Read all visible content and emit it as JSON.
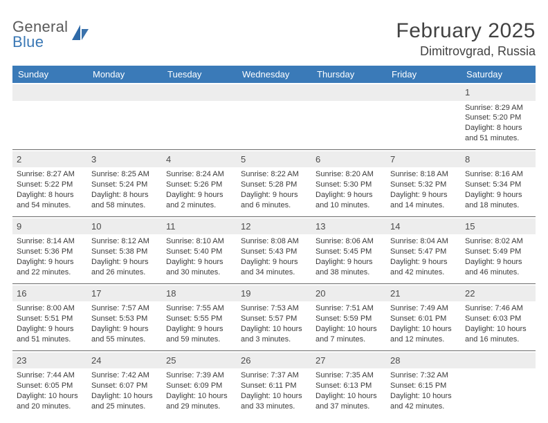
{
  "brand": {
    "line1": "General",
    "line2": "Blue"
  },
  "title": "February 2025",
  "location": "Dimitrovgrad, Russia",
  "weekdays": [
    "Sunday",
    "Monday",
    "Tuesday",
    "Wednesday",
    "Thursday",
    "Friday",
    "Saturday"
  ],
  "colors": {
    "header_bg": "#3a7ab8",
    "header_text": "#ffffff",
    "daynum_bg": "#ededed",
    "border": "#6a6a6a",
    "text": "#3a3a3a",
    "brand_blue": "#3a78b5"
  },
  "layout": {
    "first_weekday_index": 6,
    "days_in_month": 28,
    "rows": 5,
    "cols": 7
  },
  "days": [
    {
      "n": 1,
      "sunrise": "8:29 AM",
      "sunset": "5:20 PM",
      "day_h": 8,
      "day_m": 51
    },
    {
      "n": 2,
      "sunrise": "8:27 AM",
      "sunset": "5:22 PM",
      "day_h": 8,
      "day_m": 54
    },
    {
      "n": 3,
      "sunrise": "8:25 AM",
      "sunset": "5:24 PM",
      "day_h": 8,
      "day_m": 58
    },
    {
      "n": 4,
      "sunrise": "8:24 AM",
      "sunset": "5:26 PM",
      "day_h": 9,
      "day_m": 2
    },
    {
      "n": 5,
      "sunrise": "8:22 AM",
      "sunset": "5:28 PM",
      "day_h": 9,
      "day_m": 6
    },
    {
      "n": 6,
      "sunrise": "8:20 AM",
      "sunset": "5:30 PM",
      "day_h": 9,
      "day_m": 10
    },
    {
      "n": 7,
      "sunrise": "8:18 AM",
      "sunset": "5:32 PM",
      "day_h": 9,
      "day_m": 14
    },
    {
      "n": 8,
      "sunrise": "8:16 AM",
      "sunset": "5:34 PM",
      "day_h": 9,
      "day_m": 18
    },
    {
      "n": 9,
      "sunrise": "8:14 AM",
      "sunset": "5:36 PM",
      "day_h": 9,
      "day_m": 22
    },
    {
      "n": 10,
      "sunrise": "8:12 AM",
      "sunset": "5:38 PM",
      "day_h": 9,
      "day_m": 26
    },
    {
      "n": 11,
      "sunrise": "8:10 AM",
      "sunset": "5:40 PM",
      "day_h": 9,
      "day_m": 30
    },
    {
      "n": 12,
      "sunrise": "8:08 AM",
      "sunset": "5:43 PM",
      "day_h": 9,
      "day_m": 34
    },
    {
      "n": 13,
      "sunrise": "8:06 AM",
      "sunset": "5:45 PM",
      "day_h": 9,
      "day_m": 38
    },
    {
      "n": 14,
      "sunrise": "8:04 AM",
      "sunset": "5:47 PM",
      "day_h": 9,
      "day_m": 42
    },
    {
      "n": 15,
      "sunrise": "8:02 AM",
      "sunset": "5:49 PM",
      "day_h": 9,
      "day_m": 46
    },
    {
      "n": 16,
      "sunrise": "8:00 AM",
      "sunset": "5:51 PM",
      "day_h": 9,
      "day_m": 51
    },
    {
      "n": 17,
      "sunrise": "7:57 AM",
      "sunset": "5:53 PM",
      "day_h": 9,
      "day_m": 55
    },
    {
      "n": 18,
      "sunrise": "7:55 AM",
      "sunset": "5:55 PM",
      "day_h": 9,
      "day_m": 59
    },
    {
      "n": 19,
      "sunrise": "7:53 AM",
      "sunset": "5:57 PM",
      "day_h": 10,
      "day_m": 3
    },
    {
      "n": 20,
      "sunrise": "7:51 AM",
      "sunset": "5:59 PM",
      "day_h": 10,
      "day_m": 7
    },
    {
      "n": 21,
      "sunrise": "7:49 AM",
      "sunset": "6:01 PM",
      "day_h": 10,
      "day_m": 12
    },
    {
      "n": 22,
      "sunrise": "7:46 AM",
      "sunset": "6:03 PM",
      "day_h": 10,
      "day_m": 16
    },
    {
      "n": 23,
      "sunrise": "7:44 AM",
      "sunset": "6:05 PM",
      "day_h": 10,
      "day_m": 20
    },
    {
      "n": 24,
      "sunrise": "7:42 AM",
      "sunset": "6:07 PM",
      "day_h": 10,
      "day_m": 25
    },
    {
      "n": 25,
      "sunrise": "7:39 AM",
      "sunset": "6:09 PM",
      "day_h": 10,
      "day_m": 29
    },
    {
      "n": 26,
      "sunrise": "7:37 AM",
      "sunset": "6:11 PM",
      "day_h": 10,
      "day_m": 33
    },
    {
      "n": 27,
      "sunrise": "7:35 AM",
      "sunset": "6:13 PM",
      "day_h": 10,
      "day_m": 37
    },
    {
      "n": 28,
      "sunrise": "7:32 AM",
      "sunset": "6:15 PM",
      "day_h": 10,
      "day_m": 42
    }
  ],
  "labels": {
    "sunrise": "Sunrise:",
    "sunset": "Sunset:",
    "daylight": "Daylight:",
    "hours_word": "hours",
    "and_word": "and",
    "minutes_word": "minutes."
  }
}
